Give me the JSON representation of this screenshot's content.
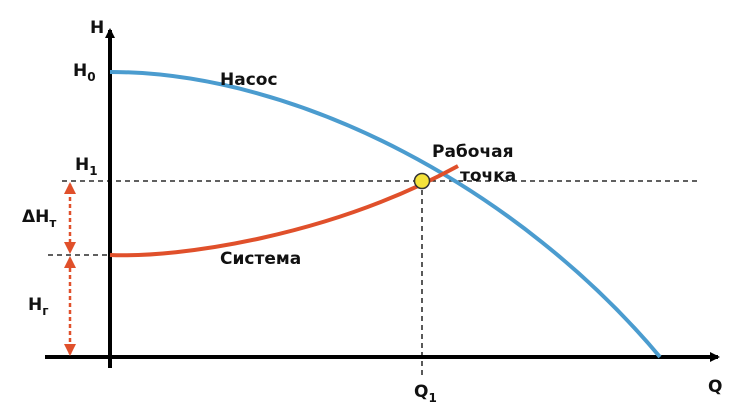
{
  "axes": {
    "y_label": "H",
    "x_label": "Q"
  },
  "labels": {
    "h0": {
      "text": "H",
      "sub": "0"
    },
    "h1": {
      "text": "H",
      "sub": "1"
    },
    "delta_ht": {
      "text": "ΔH",
      "sub": "т"
    },
    "hg": {
      "text": "H",
      "sub": "г"
    },
    "q1": {
      "text": "Q",
      "sub": "1"
    }
  },
  "curves": {
    "pump": "Насос",
    "system": "Система"
  },
  "operating_point": {
    "line1": "Рабочая",
    "line2": "точка"
  }
}
